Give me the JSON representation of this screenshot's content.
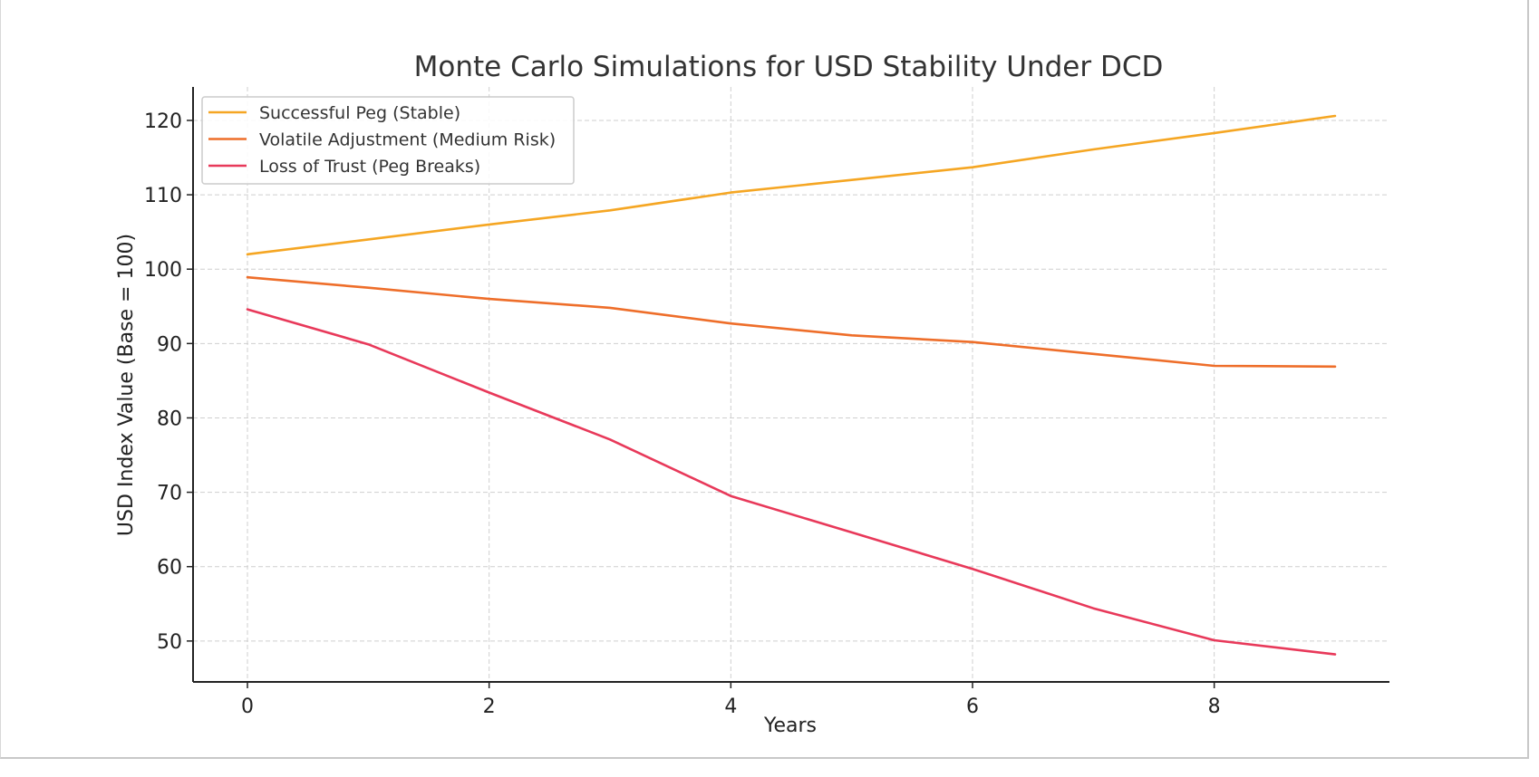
{
  "chart_data": {
    "type": "line",
    "title": "Monte Carlo Simulations for USD Stability Under DCD",
    "xlabel": "Years",
    "ylabel": "USD Index Value (Base = 100)",
    "x": [
      0,
      1,
      2,
      3,
      4,
      5,
      6,
      7,
      8,
      9
    ],
    "xlim": [
      -0.45,
      9.45
    ],
    "ylim": [
      44.5,
      124.5
    ],
    "xticks": [
      0,
      2,
      4,
      6,
      8
    ],
    "yticks": [
      50,
      60,
      70,
      80,
      90,
      100,
      110,
      120
    ],
    "grid": true,
    "legend_position": "top-left",
    "series": [
      {
        "name": "Successful Peg (Stable)",
        "color": "#f5a623",
        "values": [
          102.0,
          104.0,
          106.0,
          107.9,
          110.3,
          112.0,
          113.7,
          116.1,
          118.3,
          120.6
        ]
      },
      {
        "name": "Volatile Adjustment (Medium Risk)",
        "color": "#ee6e2a",
        "values": [
          98.9,
          97.5,
          96.0,
          94.8,
          92.7,
          91.1,
          90.2,
          88.6,
          87.0,
          86.9
        ]
      },
      {
        "name": "Loss of Trust (Peg Breaks)",
        "color": "#e8395a",
        "values": [
          94.6,
          89.9,
          83.4,
          77.1,
          69.5,
          64.6,
          59.7,
          54.4,
          50.1,
          48.2
        ]
      }
    ]
  }
}
